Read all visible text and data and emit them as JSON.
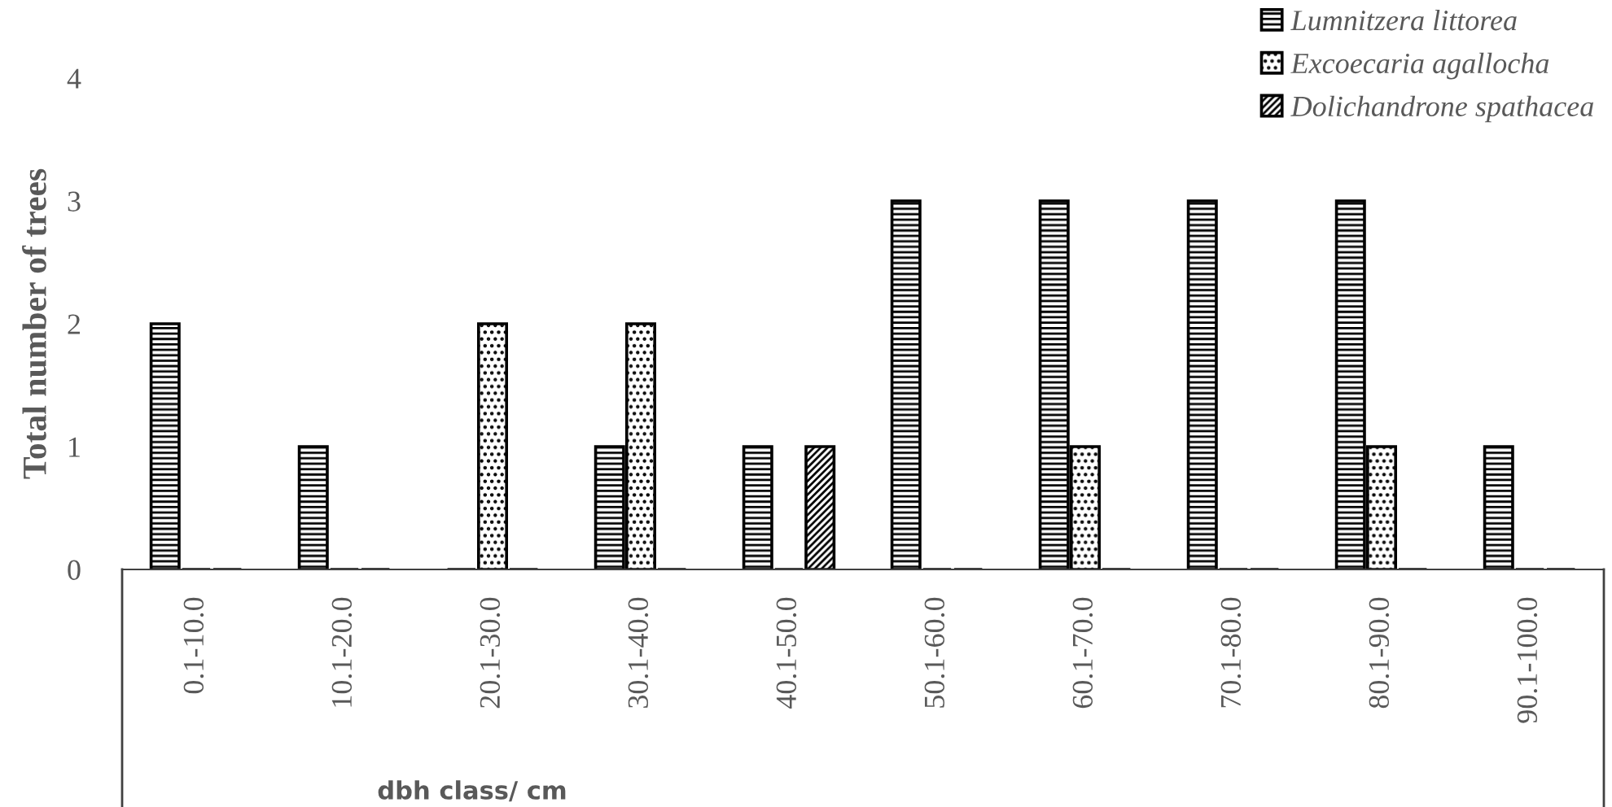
{
  "chart_data": {
    "type": "bar",
    "ylabel": "Total number of trees",
    "xlabel": "dbh class/ cm",
    "categories": [
      "0.1-10.0",
      "10.1-20.0",
      "20.1-30.0",
      "30.1-40.0",
      "40.1-50.0",
      "50.1-60.0",
      "60.1-70.0",
      "70.1-80.0",
      "80.1-90.0",
      "90.1-100.0"
    ],
    "series": [
      {
        "name": "Lumnitzera littorea",
        "color": "#000000",
        "values": [
          2,
          1,
          0,
          1,
          1,
          3,
          3,
          3,
          3,
          1
        ]
      },
      {
        "name": "Excoecaria agallocha",
        "color": "#000000",
        "values": [
          0,
          0,
          2,
          2,
          0,
          0,
          1,
          0,
          1,
          0
        ]
      },
      {
        "name": "Dolichandrone spathacea",
        "color": "#000000",
        "values": [
          0,
          0,
          0,
          0,
          1,
          0,
          0,
          0,
          0,
          0
        ]
      }
    ],
    "ylim": [
      0,
      4
    ],
    "yticks": [
      0,
      1,
      2,
      3,
      4
    ],
    "grid": false,
    "legend": "top right"
  }
}
